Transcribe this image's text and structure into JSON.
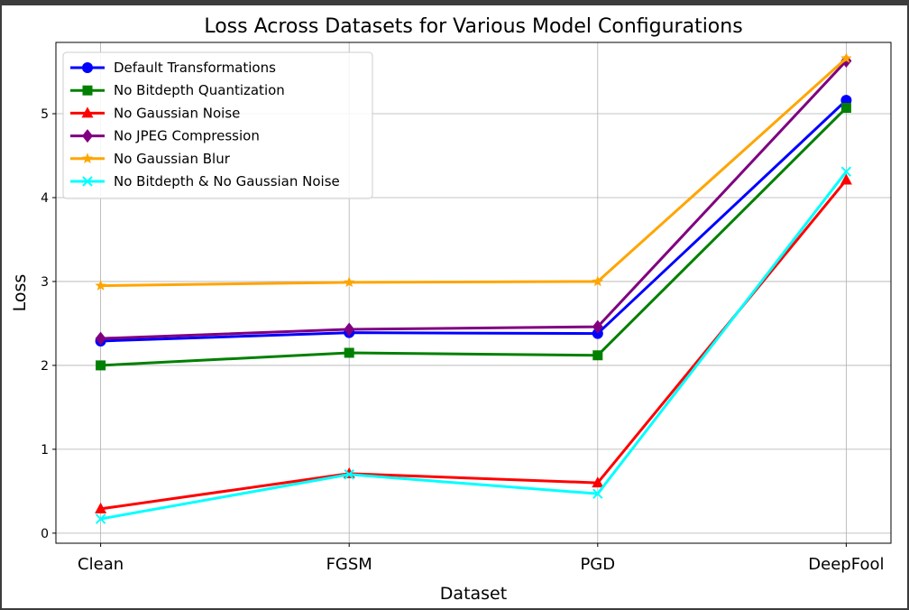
{
  "chart_data": {
    "type": "line",
    "title": "Loss Across Datasets for Various Model Configurations",
    "xlabel": "Dataset",
    "ylabel": "Loss",
    "categories": [
      "Clean",
      "FGSM",
      "PGD",
      "DeepFool"
    ],
    "ylim": [
      -0.12,
      5.85
    ],
    "yticks": [
      "0",
      "1",
      "2",
      "3",
      "4",
      "5"
    ],
    "grid": true,
    "legend_position": "top-left",
    "series": [
      {
        "name": "Default Transformations",
        "color": "#0000ff",
        "marker": "circle",
        "values": [
          2.29,
          2.39,
          2.38,
          5.16
        ]
      },
      {
        "name": "No Bitdepth Quantization",
        "color": "#008000",
        "marker": "square",
        "values": [
          2.0,
          2.15,
          2.12,
          5.07
        ]
      },
      {
        "name": "No Gaussian Noise",
        "color": "#ff0000",
        "marker": "triangle",
        "values": [
          0.29,
          0.71,
          0.6,
          4.21
        ]
      },
      {
        "name": "No JPEG Compression",
        "color": "#800080",
        "marker": "diamond",
        "values": [
          2.32,
          2.43,
          2.46,
          5.63
        ]
      },
      {
        "name": "No Gaussian Blur",
        "color": "#ffa500",
        "marker": "star",
        "values": [
          2.95,
          2.99,
          3.0,
          5.66
        ]
      },
      {
        "name": "No Bitdepth & No Gaussian Noise",
        "color": "#00ffff",
        "marker": "x",
        "values": [
          0.17,
          0.7,
          0.47,
          4.31
        ]
      }
    ]
  }
}
